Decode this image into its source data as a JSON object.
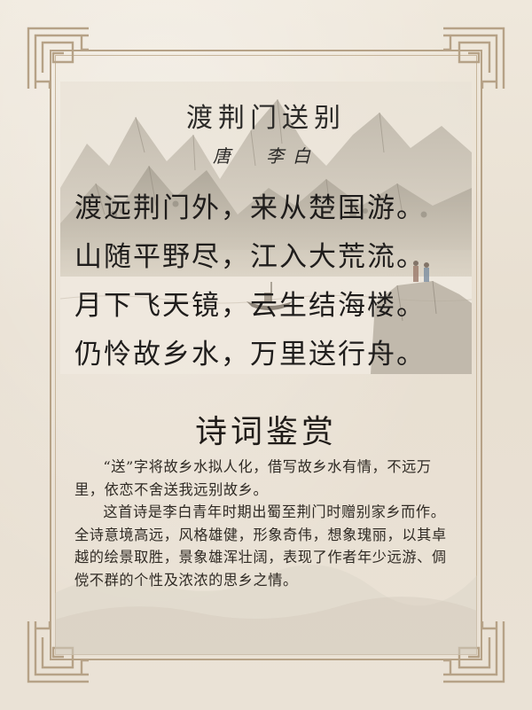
{
  "poem": {
    "title": "渡荆门送别",
    "author": "唐　李白",
    "lines": [
      "渡远荆门外，来从楚国游。",
      "山随平野尽，江入大荒流。",
      "月下飞天镜，云生结海楼。",
      "仍怜故乡水，万里送行舟。"
    ]
  },
  "appreciation": {
    "heading": "诗词鉴赏",
    "paragraphs": [
      "“送”字将故乡水拟人化，借写故乡水有情，不远万里，依恋不舍送我远别故乡。",
      "这首诗是李白青年时期出蜀至荆门时赠别家乡而作。全诗意境高远，风格雄健，形象奇伟，想象瑰丽，以其卓越的绘景取胜，景象雄浑壮阔，表现了作者年少远游、倜傥不群的个性及浓浓的思乡之情。"
    ]
  },
  "colors": {
    "background": "#e9e1d4",
    "frame": "#b6a287",
    "text": "#1f1d1c"
  }
}
